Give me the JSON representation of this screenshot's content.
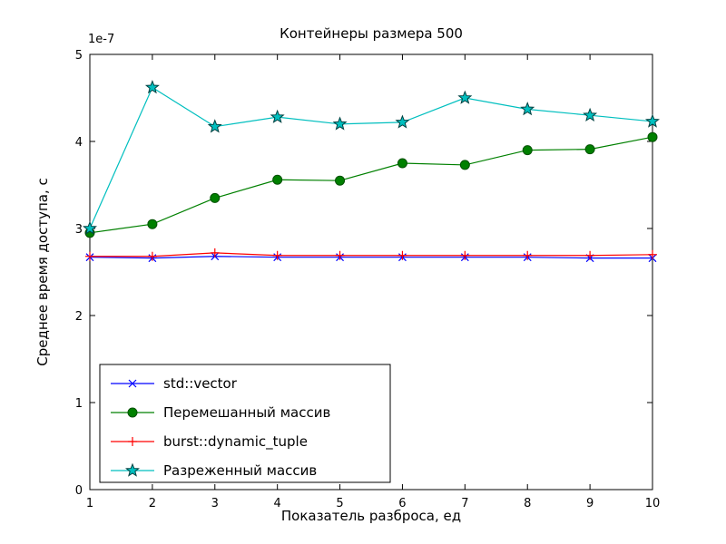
{
  "figure": {
    "title": "Контейнеры размера 500",
    "xlabel": "Показатель разброса, ед",
    "ylabel": "Среднее время доступа, с",
    "offset_text": "1e-7",
    "background": "#ffffff",
    "axes_color": "#000000"
  },
  "chart_data": {
    "type": "line",
    "title": "Контейнеры размера 500",
    "xlabel": "Показатель разброса, ед",
    "ylabel": "Среднее время доступа, с",
    "x": [
      1,
      2,
      3,
      4,
      5,
      6,
      7,
      8,
      9,
      10
    ],
    "xlim": [
      1,
      10
    ],
    "ylim": [
      0,
      5
    ],
    "y_unit_multiplier": "1e-7",
    "x_ticks": [
      1,
      2,
      3,
      4,
      5,
      6,
      7,
      8,
      9,
      10
    ],
    "y_ticks": [
      0,
      1,
      2,
      3,
      4,
      5
    ],
    "grid": false,
    "legend_position": "lower left",
    "series": [
      {
        "name": "std::vector",
        "color": "#0000ff",
        "marker": "x",
        "values": [
          2.67,
          2.66,
          2.68,
          2.67,
          2.67,
          2.67,
          2.67,
          2.67,
          2.66,
          2.66
        ]
      },
      {
        "name": "Перемешанный массив",
        "color": "#008000",
        "marker": "circle",
        "marker_edge": "#005000",
        "values": [
          2.95,
          3.05,
          3.35,
          3.56,
          3.55,
          3.75,
          3.73,
          3.9,
          3.91,
          4.05
        ]
      },
      {
        "name": "burst::dynamic_tuple",
        "color": "#ff0000",
        "marker": "plus",
        "values": [
          2.68,
          2.68,
          2.72,
          2.69,
          2.69,
          2.69,
          2.69,
          2.69,
          2.69,
          2.7
        ]
      },
      {
        "name": "Разреженный массив",
        "color": "#00bfbf",
        "marker": "star",
        "marker_edge": "#004040",
        "values": [
          3.0,
          4.62,
          4.17,
          4.28,
          4.2,
          4.22,
          4.5,
          4.37,
          4.3,
          4.23
        ]
      }
    ]
  }
}
